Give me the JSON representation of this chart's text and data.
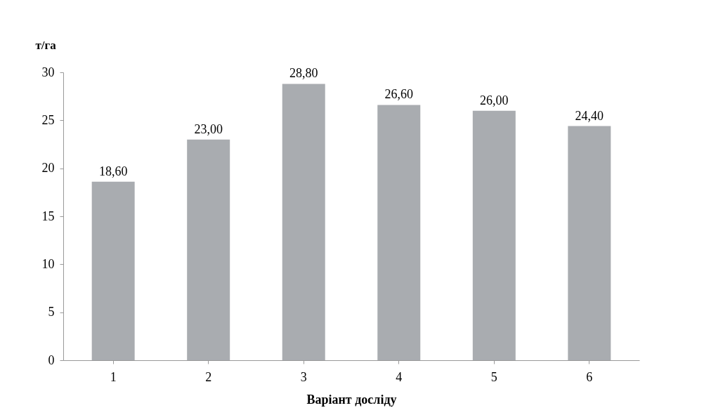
{
  "chart_data": {
    "type": "bar",
    "ylabel": "т/га",
    "xlabel": "Варіант досліду",
    "categories": [
      "1",
      "2",
      "3",
      "4",
      "5",
      "6"
    ],
    "values": [
      18.6,
      23.0,
      28.8,
      26.6,
      26.0,
      24.4
    ],
    "value_labels": [
      "18,60",
      "23,00",
      "28,80",
      "26,60",
      "26,00",
      "24,40"
    ],
    "color": "#a9acb0",
    "ylim": [
      0,
      30
    ],
    "yticks": [
      0,
      5,
      10,
      15,
      20,
      25,
      30
    ],
    "grid": false
  }
}
